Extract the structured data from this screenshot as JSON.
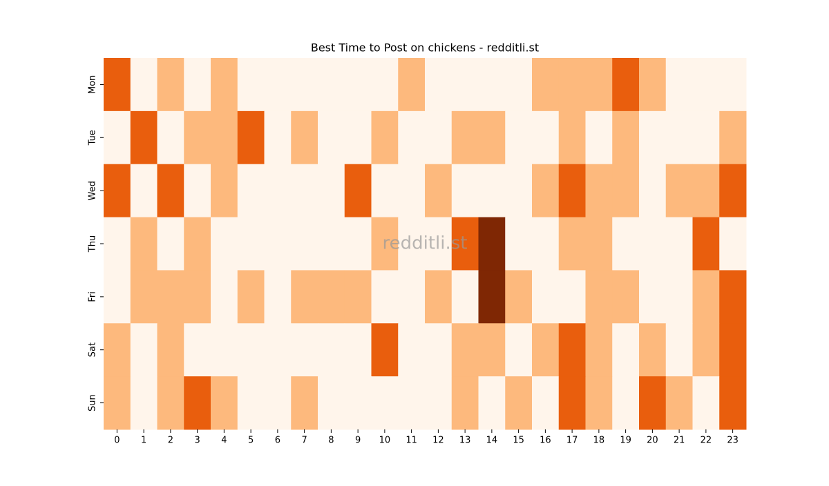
{
  "chart_data": {
    "type": "heatmap",
    "title": "Best Time to Post on chickens - redditli.st",
    "watermark": "redditli.st",
    "x": [
      0,
      1,
      2,
      3,
      4,
      5,
      6,
      7,
      8,
      9,
      10,
      11,
      12,
      13,
      14,
      15,
      16,
      17,
      18,
      19,
      20,
      21,
      22,
      23
    ],
    "y": [
      "Mon",
      "Tue",
      "Wed",
      "Thu",
      "Fri",
      "Sat",
      "Sun"
    ],
    "values": [
      [
        2,
        0,
        1,
        0,
        1,
        0,
        0,
        0,
        0,
        0,
        0,
        1,
        0,
        0,
        0,
        0,
        1,
        1,
        1,
        2,
        1,
        0,
        0,
        0
      ],
      [
        0,
        2,
        0,
        1,
        1,
        2,
        0,
        1,
        0,
        0,
        1,
        0,
        0,
        1,
        1,
        0,
        0,
        1,
        0,
        1,
        0,
        0,
        0,
        1
      ],
      [
        2,
        0,
        2,
        0,
        1,
        0,
        0,
        0,
        0,
        2,
        0,
        0,
        1,
        0,
        0,
        0,
        1,
        2,
        1,
        1,
        0,
        1,
        1,
        2
      ],
      [
        0,
        1,
        0,
        1,
        0,
        0,
        0,
        0,
        0,
        0,
        1,
        0,
        0,
        2,
        3,
        0,
        0,
        1,
        1,
        0,
        0,
        0,
        2,
        0
      ],
      [
        0,
        1,
        1,
        1,
        0,
        1,
        0,
        1,
        1,
        1,
        0,
        0,
        1,
        0,
        3,
        1,
        0,
        0,
        1,
        1,
        0,
        0,
        1,
        2
      ],
      [
        1,
        0,
        1,
        0,
        0,
        0,
        0,
        0,
        0,
        0,
        2,
        0,
        0,
        1,
        1,
        0,
        1,
        2,
        1,
        0,
        1,
        0,
        1,
        2
      ],
      [
        1,
        0,
        1,
        2,
        1,
        0,
        0,
        1,
        0,
        0,
        0,
        0,
        0,
        1,
        0,
        1,
        0,
        2,
        1,
        0,
        2,
        1,
        0,
        2
      ]
    ],
    "clim": [
      0,
      3
    ],
    "colors": [
      "#fff5eb",
      "#fdb97d",
      "#e95e0d",
      "#7f2704"
    ]
  }
}
